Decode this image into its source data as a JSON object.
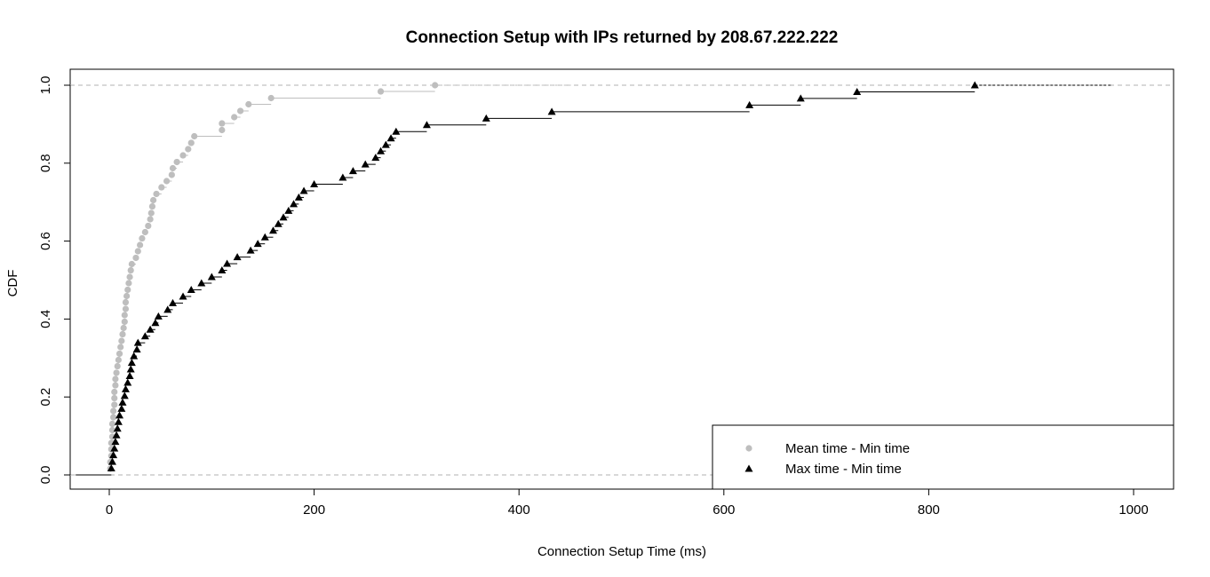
{
  "chart_data": {
    "type": "scatter",
    "subtype": "empirical-cdf-step",
    "title": "Connection Setup with IPs returned by 208.67.222.222",
    "xlabel": "Connection Setup Time (ms)",
    "ylabel": "CDF",
    "xlim": [
      0,
      1000
    ],
    "ylim": [
      0,
      1
    ],
    "x_ticks": [
      0,
      200,
      400,
      600,
      800,
      1000
    ],
    "y_ticks": [
      "0.0",
      "0.2",
      "0.4",
      "0.6",
      "0.8",
      "1.0"
    ],
    "reference_lines_y": [
      0,
      1
    ],
    "legend_position": "bottom-right",
    "series": [
      {
        "name": "Mean time - Min time",
        "color": "#bebebe",
        "marker": "circle",
        "x": [
          1,
          1,
          2,
          2,
          2,
          3,
          3,
          3,
          4,
          4,
          5,
          5,
          5,
          6,
          6,
          7,
          8,
          9,
          10,
          11,
          12,
          13,
          14,
          15,
          15,
          16,
          16,
          17,
          18,
          19,
          20,
          21,
          22,
          26,
          28,
          30,
          32,
          35,
          38,
          40,
          41,
          42,
          43,
          46,
          51,
          56,
          61,
          62,
          66,
          72,
          77,
          80,
          83,
          110,
          110,
          122,
          128,
          136,
          158,
          265,
          318
        ],
        "y": [
          0.016,
          0.033,
          0.049,
          0.066,
          0.082,
          0.098,
          0.115,
          0.131,
          0.148,
          0.164,
          0.18,
          0.197,
          0.213,
          0.23,
          0.246,
          0.262,
          0.279,
          0.295,
          0.311,
          0.328,
          0.344,
          0.361,
          0.377,
          0.393,
          0.41,
          0.426,
          0.443,
          0.459,
          0.475,
          0.492,
          0.508,
          0.525,
          0.541,
          0.557,
          0.574,
          0.59,
          0.607,
          0.623,
          0.639,
          0.656,
          0.672,
          0.689,
          0.705,
          0.721,
          0.738,
          0.754,
          0.77,
          0.787,
          0.803,
          0.82,
          0.836,
          0.852,
          0.869,
          0.885,
          0.902,
          0.918,
          0.934,
          0.951,
          0.967,
          0.984,
          1.0
        ]
      },
      {
        "name": "Max time - Min time",
        "color": "#000000",
        "marker": "triangle",
        "x": [
          2,
          3,
          4,
          5,
          6,
          7,
          8,
          9,
          10,
          12,
          13,
          15,
          16,
          18,
          20,
          21,
          22,
          24,
          27,
          28,
          35,
          40,
          45,
          48,
          57,
          62,
          72,
          80,
          90,
          100,
          110,
          115,
          125,
          138,
          145,
          152,
          160,
          165,
          170,
          175,
          180,
          185,
          190,
          200,
          228,
          238,
          250,
          260,
          265,
          270,
          275,
          280,
          310,
          368,
          432,
          625,
          675,
          730,
          845
        ],
        "y": [
          0.017,
          0.034,
          0.051,
          0.068,
          0.085,
          0.102,
          0.119,
          0.136,
          0.153,
          0.17,
          0.186,
          0.203,
          0.22,
          0.237,
          0.254,
          0.271,
          0.288,
          0.305,
          0.322,
          0.339,
          0.356,
          0.373,
          0.39,
          0.407,
          0.424,
          0.441,
          0.458,
          0.475,
          0.492,
          0.508,
          0.525,
          0.542,
          0.559,
          0.576,
          0.593,
          0.61,
          0.627,
          0.644,
          0.661,
          0.678,
          0.695,
          0.712,
          0.729,
          0.746,
          0.763,
          0.78,
          0.797,
          0.814,
          0.831,
          0.847,
          0.864,
          0.881,
          0.898,
          0.915,
          0.932,
          0.949,
          0.966,
          0.983,
          1.0
        ]
      }
    ]
  }
}
